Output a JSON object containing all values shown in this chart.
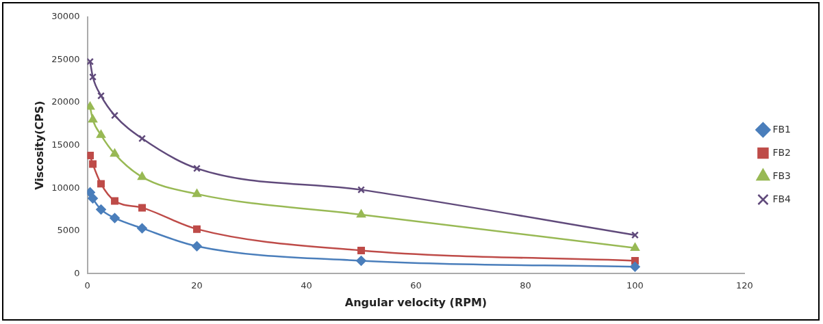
{
  "chart_data": {
    "type": "line",
    "xlabel": "Angular velocity (RPM)",
    "ylabel": "Viscosity(CPS)",
    "x": [
      0.5,
      1,
      2.5,
      5,
      10,
      20,
      50,
      100
    ],
    "xlim": [
      0,
      120
    ],
    "xticks": [
      0,
      20,
      40,
      60,
      80,
      100,
      120
    ],
    "ylim": [
      0,
      30000
    ],
    "yticks": [
      0,
      5000,
      10000,
      15000,
      20000,
      25000,
      30000
    ],
    "legend": "right",
    "grid": false,
    "series": [
      {
        "name": "FB1",
        "color": "#4a7ebb",
        "marker": "diamond",
        "values": [
          9500,
          8800,
          7500,
          6500,
          5300,
          3200,
          1500,
          800
        ]
      },
      {
        "name": "FB2",
        "color": "#be4b48",
        "marker": "square",
        "values": [
          13800,
          12800,
          10500,
          8500,
          7700,
          5200,
          2700,
          1500
        ]
      },
      {
        "name": "FB3",
        "color": "#98b954",
        "marker": "triangle",
        "values": [
          19500,
          18000,
          16200,
          14000,
          11300,
          9300,
          6900,
          3000
        ]
      },
      {
        "name": "FB4",
        "color": "#604a7b",
        "marker": "cross",
        "values": [
          24800,
          23000,
          20800,
          18500,
          15800,
          12300,
          9800,
          4500
        ]
      }
    ]
  }
}
